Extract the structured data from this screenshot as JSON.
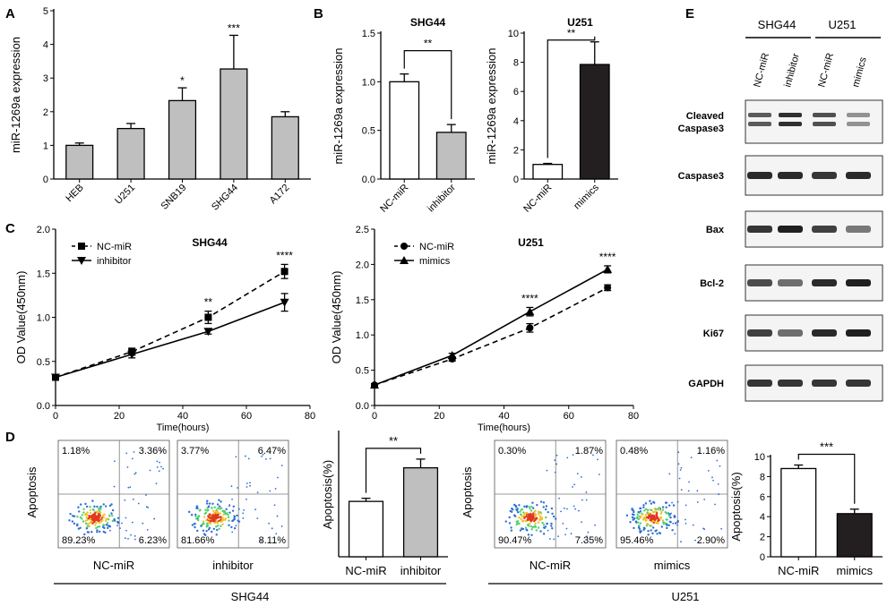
{
  "panel_letters": {
    "a": "A",
    "b": "B",
    "c": "C",
    "d": "D",
    "e": "E"
  },
  "chart_data": [
    {
      "id": "A",
      "type": "bar",
      "title": "",
      "categories": [
        "HEB",
        "U251",
        "SNB19",
        "SHG44",
        "A172"
      ],
      "values": [
        1.0,
        1.5,
        2.33,
        3.27,
        1.85
      ],
      "errors": [
        0.07,
        0.15,
        0.38,
        1.0,
        0.15
      ],
      "significance": [
        "",
        "",
        "*",
        "***",
        ""
      ],
      "ylabel": "miR-1269a expression",
      "ylim": [
        0,
        5
      ],
      "yticks": [
        0,
        1,
        2,
        3,
        4,
        5
      ],
      "bar_color": "#bfbfbf"
    },
    {
      "id": "B-SHG44",
      "type": "bar",
      "title": "SHG44",
      "categories": [
        "NC-miR",
        "inhibitor"
      ],
      "values": [
        1.0,
        0.48
      ],
      "errors": [
        0.08,
        0.08
      ],
      "colors": [
        "#ffffff",
        "#bfbfbf"
      ],
      "significance": "**",
      "ylabel": "miR-1269a expression",
      "ylim": [
        0,
        1.5
      ],
      "yticks": [
        "0.0",
        "0.5",
        "1.0",
        "1.5"
      ]
    },
    {
      "id": "B-U251",
      "type": "bar",
      "title": "U251",
      "categories": [
        "NC-miR",
        "mimics"
      ],
      "values": [
        1.0,
        7.85
      ],
      "errors": [
        0.07,
        1.55
      ],
      "colors": [
        "#ffffff",
        "#231f20"
      ],
      "significance": "**",
      "ylabel": "miR-1269a expression",
      "ylim": [
        0,
        10
      ],
      "yticks": [
        0,
        2,
        4,
        6,
        8,
        10
      ]
    },
    {
      "id": "C-SHG44",
      "type": "line",
      "title": "SHG44",
      "x": [
        0,
        24,
        48,
        72
      ],
      "series": [
        {
          "name": "NC-miR",
          "values": [
            0.32,
            0.61,
            1.0,
            1.52
          ],
          "errors": [
            0.02,
            0.04,
            0.07,
            0.08
          ],
          "style": "dashed",
          "marker": "square"
        },
        {
          "name": "inhibitor",
          "values": [
            0.32,
            0.58,
            0.84,
            1.17
          ],
          "errors": [
            0.02,
            0.04,
            0.03,
            0.1
          ],
          "style": "solid",
          "marker": "triangle-down"
        }
      ],
      "significance": [
        {
          "x": 48,
          "label": "**"
        },
        {
          "x": 72,
          "label": "****"
        }
      ],
      "xlabel": "Time(hours)",
      "ylabel": "OD Value(450nm)",
      "xlim": [
        0,
        80
      ],
      "xticks": [
        0,
        20,
        40,
        60,
        80
      ],
      "ylim": [
        0,
        2
      ],
      "yticks": [
        "0.0",
        "0.5",
        "1.0",
        "1.5",
        "2.0"
      ]
    },
    {
      "id": "C-U251",
      "type": "line",
      "title": "U251",
      "x": [
        0,
        24,
        48,
        72
      ],
      "series": [
        {
          "name": "NC-miR",
          "values": [
            0.29,
            0.66,
            1.1,
            1.67
          ],
          "errors": [
            0.02,
            0.03,
            0.06,
            0.04
          ],
          "style": "dashed",
          "marker": "circle"
        },
        {
          "name": "mimics",
          "values": [
            0.29,
            0.71,
            1.33,
            1.93
          ],
          "errors": [
            0.02,
            0.03,
            0.06,
            0.05
          ],
          "style": "solid",
          "marker": "triangle-up"
        }
      ],
      "significance": [
        {
          "x": 48,
          "label": "****"
        },
        {
          "x": 72,
          "label": "****"
        }
      ],
      "xlabel": "Time(hours)",
      "ylabel": "OD Value(450nm)",
      "xlim": [
        0,
        80
      ],
      "xticks": [
        0,
        20,
        40,
        60,
        80
      ],
      "ylim": [
        0,
        2.5
      ],
      "yticks": [
        "0.0",
        "0.5",
        "1.0",
        "1.5",
        "2.0",
        "2.5"
      ]
    },
    {
      "id": "D-SHG44",
      "type": "bar",
      "title": "",
      "categories": [
        "NC-miR",
        "inhibitor"
      ],
      "values": [
        8.9,
        14.3
      ],
      "errors": [
        0.5,
        1.4
      ],
      "colors": [
        "#ffffff",
        "#bfbfbf"
      ],
      "significance": "**",
      "ylabel": "Apoptosis(%)",
      "ylim": [
        0,
        20
      ],
      "yticks": []
    },
    {
      "id": "D-U251",
      "type": "bar",
      "title": "",
      "categories": [
        "NC-miR",
        "mimics"
      ],
      "values": [
        8.8,
        4.3
      ],
      "errors": [
        0.35,
        0.45
      ],
      "colors": [
        "#ffffff",
        "#231f20"
      ],
      "significance": "***",
      "ylabel": "Apoptosis(%)",
      "ylim": [
        0,
        10
      ],
      "yticks": [
        0,
        2,
        4,
        6,
        8,
        10
      ]
    }
  ],
  "flow": {
    "ylabel": "Apoptosis",
    "plots": [
      {
        "name": "NC-miR",
        "q": [
          "1.18%",
          "3.36%",
          "89.23%",
          "6.23%"
        ]
      },
      {
        "name": "inhibitor",
        "q": [
          "3.77%",
          "6.47%",
          "81.66%",
          "8.11%"
        ]
      },
      {
        "name": "NC-miR",
        "q": [
          "0.30%",
          "1.87%",
          "90.47%",
          "7.35%"
        ]
      },
      {
        "name": "mimics",
        "q": [
          "0.48%",
          "1.16%",
          "95.46%",
          "2.90%"
        ]
      }
    ],
    "group_labels": [
      "SHG44",
      "U251"
    ]
  },
  "western": {
    "cell_lines": [
      "SHG44",
      "U251"
    ],
    "lanes": [
      "NC-miR",
      "inhibitor",
      "NC-miR",
      "mimics"
    ],
    "proteins": [
      "Cleaved\nCaspase3",
      "Caspase3",
      "Bax",
      "Bcl-2",
      "Ki67",
      "GAPDH"
    ],
    "protein_lines": [
      [
        "Cleaved",
        "Caspase3"
      ],
      [
        "Caspase3"
      ],
      [
        "Bax"
      ],
      [
        "Bcl-2"
      ],
      [
        "Ki67"
      ],
      [
        "GAPDH"
      ]
    ],
    "intensity": [
      [
        0.7,
        0.9,
        0.75,
        0.45
      ],
      [
        0.9,
        0.9,
        0.85,
        0.9
      ],
      [
        0.85,
        0.95,
        0.8,
        0.55
      ],
      [
        0.75,
        0.6,
        0.9,
        0.95
      ],
      [
        0.8,
        0.6,
        0.9,
        0.95
      ],
      [
        0.85,
        0.85,
        0.85,
        0.85
      ]
    ]
  }
}
